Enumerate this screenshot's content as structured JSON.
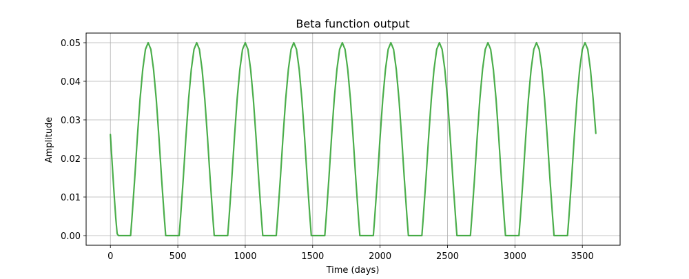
{
  "chart_data": {
    "type": "line",
    "title": "Beta function output",
    "xlabel": "Time (days)",
    "ylabel": "Amplitude",
    "xlim": [
      -180,
      3780
    ],
    "ylim": [
      -0.0025,
      0.0525
    ],
    "xticks": [
      0,
      500,
      1000,
      1500,
      2000,
      2500,
      3000,
      3500
    ],
    "yticks": [
      0.0,
      0.01,
      0.02,
      0.03,
      0.04,
      0.05
    ],
    "xtick_labels": [
      "0",
      "500",
      "1000",
      "1500",
      "2000",
      "2500",
      "3000",
      "3500"
    ],
    "ytick_labels": [
      "0.00",
      "0.01",
      "0.02",
      "0.03",
      "0.04",
      "0.05"
    ],
    "grid": true,
    "legend": "none",
    "series": [
      {
        "color": "#2ca02c",
        "x": [
          0,
          10,
          20,
          30,
          40,
          50,
          60,
          80,
          100,
          120,
          140,
          150,
          160,
          180,
          200,
          220,
          240,
          260,
          280,
          300,
          320,
          340,
          360,
          380,
          400,
          410,
          420,
          440,
          460,
          480,
          500,
          510,
          520,
          540,
          560,
          580,
          600,
          620,
          640,
          660,
          680,
          700,
          720,
          740,
          760,
          770,
          780,
          800,
          820,
          840,
          860,
          870,
          880,
          900,
          920,
          940,
          960,
          980,
          1000,
          1020,
          1040,
          1060,
          1080,
          1100,
          1120,
          1130,
          1140,
          1160,
          1180,
          1200,
          1220,
          1230,
          1240,
          1260,
          1280,
          1300,
          1320,
          1340,
          1360,
          1380,
          1400,
          1420,
          1440,
          1460,
          1480,
          1490,
          1500,
          1520,
          1540,
          1560,
          1580,
          1590,
          1600,
          1620,
          1640,
          1660,
          1680,
          1700,
          1720,
          1740,
          1760,
          1780,
          1800,
          1820,
          1840,
          1850,
          1860,
          1880,
          1900,
          1920,
          1940,
          1950,
          1960,
          1980,
          2000,
          2020,
          2040,
          2060,
          2080,
          2100,
          2120,
          2140,
          2160,
          2180,
          2200,
          2210,
          2220,
          2240,
          2260,
          2280,
          2300,
          2310,
          2320,
          2340,
          2360,
          2380,
          2400,
          2420,
          2440,
          2460,
          2480,
          2500,
          2520,
          2540,
          2560,
          2570,
          2580,
          2600,
          2620,
          2640,
          2660,
          2670,
          2680,
          2700,
          2720,
          2740,
          2760,
          2780,
          2800,
          2820,
          2840,
          2860,
          2880,
          2900,
          2920,
          2930,
          2940,
          2960,
          2980,
          3000,
          3020,
          3030,
          3040,
          3060,
          3080,
          3100,
          3120,
          3140,
          3160,
          3180,
          3200,
          3220,
          3240,
          3260,
          3280,
          3290,
          3300,
          3320,
          3340,
          3360,
          3380,
          3390,
          3400,
          3420,
          3440,
          3460,
          3480,
          3500,
          3520,
          3540,
          3560,
          3580,
          3600
        ],
        "y": [
          0.0262,
          0.0205,
          0.0149,
          0.0095,
          0.0045,
          0.0005,
          0.0,
          0.0,
          0.0,
          0.0,
          0.0,
          0.0,
          0.0046,
          0.0146,
          0.0255,
          0.0354,
          0.0431,
          0.0483,
          0.05,
          0.0483,
          0.0431,
          0.0354,
          0.0255,
          0.0146,
          0.0046,
          0.0,
          0.0,
          0.0,
          0.0,
          0.0,
          0.0,
          0.0,
          0.0046,
          0.0146,
          0.0255,
          0.0354,
          0.0431,
          0.0483,
          0.05,
          0.0483,
          0.0431,
          0.0354,
          0.0255,
          0.0146,
          0.0046,
          0.0,
          0.0,
          0.0,
          0.0,
          0.0,
          0.0,
          0.0,
          0.0046,
          0.0146,
          0.0255,
          0.0354,
          0.0431,
          0.0483,
          0.05,
          0.0483,
          0.0431,
          0.0354,
          0.0255,
          0.0146,
          0.0046,
          0.0,
          0.0,
          0.0,
          0.0,
          0.0,
          0.0,
          0.0,
          0.0046,
          0.0146,
          0.0255,
          0.0354,
          0.0431,
          0.0483,
          0.05,
          0.0483,
          0.0431,
          0.0354,
          0.0255,
          0.0146,
          0.0046,
          0.0,
          0.0,
          0.0,
          0.0,
          0.0,
          0.0,
          0.0,
          0.0046,
          0.0146,
          0.0255,
          0.0354,
          0.0431,
          0.0483,
          0.05,
          0.0483,
          0.0431,
          0.0354,
          0.0255,
          0.0146,
          0.0046,
          0.0,
          0.0,
          0.0,
          0.0,
          0.0,
          0.0,
          0.0,
          0.0046,
          0.0146,
          0.0255,
          0.0354,
          0.0431,
          0.0483,
          0.05,
          0.0483,
          0.0431,
          0.0354,
          0.0255,
          0.0146,
          0.0046,
          0.0,
          0.0,
          0.0,
          0.0,
          0.0,
          0.0,
          0.0,
          0.0046,
          0.0146,
          0.0255,
          0.0354,
          0.0431,
          0.0483,
          0.05,
          0.0483,
          0.0431,
          0.0354,
          0.0255,
          0.0146,
          0.0046,
          0.0,
          0.0,
          0.0,
          0.0,
          0.0,
          0.0,
          0.0,
          0.0046,
          0.0146,
          0.0255,
          0.0354,
          0.0431,
          0.0483,
          0.05,
          0.0483,
          0.0431,
          0.0354,
          0.0255,
          0.0146,
          0.0046,
          0.0,
          0.0,
          0.0,
          0.0,
          0.0,
          0.0,
          0.0,
          0.0046,
          0.0146,
          0.0255,
          0.0354,
          0.0431,
          0.0483,
          0.05,
          0.0483,
          0.0431,
          0.0354,
          0.0255,
          0.0146,
          0.0046,
          0.0,
          0.0,
          0.0,
          0.0,
          0.0,
          0.0,
          0.0,
          0.0046,
          0.0146,
          0.0255,
          0.0354,
          0.0431,
          0.0483,
          0.05,
          0.0483,
          0.0431,
          0.0354,
          0.0265
        ]
      }
    ]
  }
}
